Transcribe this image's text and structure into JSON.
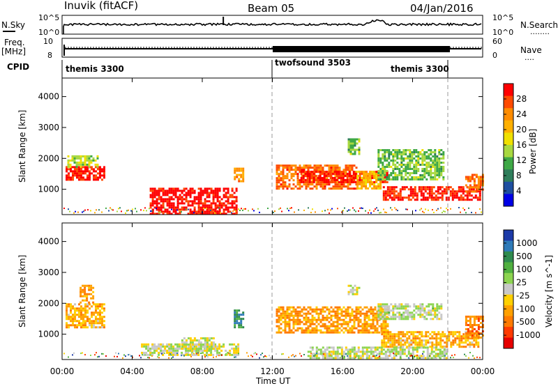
{
  "header": {
    "station": "Inuvik (fitACF)",
    "beam": "Beam 05",
    "date": "04/Jan/2016"
  },
  "nsky_panel": {
    "left_label": "N.Sky",
    "left_tick_top": "10^5",
    "left_tick_bottom": "10^0",
    "right_tick_top": "10^5",
    "right_tick_bottom": "10^0",
    "right_label": "N.Search",
    "right_label_marker": "........"
  },
  "freq_panel": {
    "left_label_line1": "Freq.",
    "left_label_line2": "[MHz]",
    "left_tick_top": "10",
    "left_tick_bottom": "8",
    "right_tick_top": "60",
    "right_tick_bottom": "0",
    "right_label": "Nave",
    "right_label_marker": "...."
  },
  "cpid": {
    "label": "CPID",
    "segments": [
      {
        "name": "themis 3300",
        "start_hour": 0,
        "end_hour": 12
      },
      {
        "name": "twofsound 3503",
        "start_hour": 12,
        "end_hour": 22
      },
      {
        "name": "themis 3300",
        "start_hour": 22,
        "end_hour": 24
      }
    ]
  },
  "power_panel": {
    "ylabel": "Slant Range [km]",
    "yticks": [
      "4000",
      "3000",
      "2000",
      "1000"
    ],
    "colorbar_label": "Power [dB]",
    "colorbar_ticks": [
      "28",
      "24",
      "20",
      "16",
      "12",
      "8",
      "4"
    ],
    "colorbar_colors": [
      "#ff0000",
      "#ff4a00",
      "#ff8c00",
      "#ffb000",
      "#f0e000",
      "#a8d840",
      "#3ea846",
      "#2e7d5a",
      "#1e4fa0",
      "#0000e6"
    ]
  },
  "velocity_panel": {
    "ylabel": "Slant Range [km]",
    "yticks": [
      "4000",
      "3000",
      "2000",
      "1000"
    ],
    "colorbar_label": "Velocity [m s^-1]",
    "colorbar_ticks": [
      "1000",
      "500",
      "100",
      "25",
      "-25",
      "-100",
      "-500",
      "-1000"
    ],
    "colorbar_colors": [
      "#1c3aa8",
      "#2e7ab8",
      "#2e8a4e",
      "#50b040",
      "#8cd450",
      "#c8c8c8",
      "#ffd000",
      "#ffa000",
      "#ff7a00",
      "#ff3a00",
      "#e60000"
    ]
  },
  "xaxis": {
    "label": "Time UT",
    "ticks": [
      "00:00",
      "04:00",
      "08:00",
      "12:00",
      "16:00",
      "20:00",
      "00:00"
    ]
  },
  "chart_data": [
    {
      "type": "heatmap",
      "title": "Power",
      "xlabel": "Time UT",
      "ylabel": "Slant Range [km]",
      "colorbar": "Power [dB]",
      "xlim_hours": [
        0,
        24
      ],
      "ylim_km": [
        180,
        4600
      ],
      "clim": [
        0,
        30
      ],
      "dashed_lines_hours": [
        12,
        22
      ],
      "regions": [
        {
          "t0": 0.2,
          "t1": 2.4,
          "r0": 1300,
          "r1": 1750,
          "value": 28
        },
        {
          "t0": 0.3,
          "t1": 2.0,
          "r0": 1750,
          "r1": 2100,
          "value": 14
        },
        {
          "t0": 5.0,
          "t1": 9.9,
          "r0": 200,
          "r1": 1050,
          "value": 29
        },
        {
          "t0": 9.8,
          "t1": 10.3,
          "r0": 1250,
          "r1": 1700,
          "value": 22
        },
        {
          "t0": 12.2,
          "t1": 16.8,
          "r0": 1050,
          "r1": 1800,
          "value": 24
        },
        {
          "t0": 13.6,
          "t1": 18.5,
          "r0": 1200,
          "r1": 1600,
          "value": 28
        },
        {
          "t0": 16.3,
          "t1": 16.9,
          "r0": 2150,
          "r1": 2650,
          "value": 12
        },
        {
          "t0": 16.8,
          "t1": 18.2,
          "r0": 1000,
          "r1": 1600,
          "value": 20
        },
        {
          "t0": 18.0,
          "t1": 21.8,
          "r0": 1300,
          "r1": 2300,
          "value": 12
        },
        {
          "t0": 18.3,
          "t1": 23.8,
          "r0": 650,
          "r1": 1100,
          "value": 28
        },
        {
          "t0": 23.0,
          "t1": 24.0,
          "r0": 900,
          "r1": 1500,
          "value": 24
        }
      ]
    },
    {
      "type": "heatmap",
      "title": "Velocity",
      "xlabel": "Time UT",
      "ylabel": "Slant Range [km]",
      "colorbar": "Velocity [m s^-1]",
      "xlim_hours": [
        0,
        24
      ],
      "ylim_km": [
        180,
        4600
      ],
      "clim": [
        -1000,
        1000
      ],
      "dashed_lines_hours": [
        12,
        22
      ],
      "regions": [
        {
          "t0": 0.2,
          "t1": 2.4,
          "r0": 1200,
          "r1": 2000,
          "value": -300
        },
        {
          "t0": 1.0,
          "t1": 1.8,
          "r0": 2000,
          "r1": 2600,
          "value": -400
        },
        {
          "t0": 4.5,
          "t1": 10.0,
          "r0": 300,
          "r1": 700,
          "value": 0
        },
        {
          "t0": 6.8,
          "t1": 8.6,
          "r0": 500,
          "r1": 900,
          "value": 10
        },
        {
          "t0": 9.8,
          "t1": 10.3,
          "r0": 1250,
          "r1": 1800,
          "value": 600
        },
        {
          "t0": 12.2,
          "t1": 18.6,
          "r0": 1050,
          "r1": 1900,
          "value": -400
        },
        {
          "t0": 16.3,
          "t1": 16.9,
          "r0": 2300,
          "r1": 2600,
          "value": 10
        },
        {
          "t0": 18.0,
          "t1": 21.6,
          "r0": 1500,
          "r1": 2000,
          "value": 60
        },
        {
          "t0": 18.2,
          "t1": 23.8,
          "r0": 600,
          "r1": 1100,
          "value": -300
        },
        {
          "t0": 14.0,
          "t1": 22.0,
          "r0": 250,
          "r1": 600,
          "value": 50
        },
        {
          "t0": 23.0,
          "t1": 24.0,
          "r0": 900,
          "r1": 1600,
          "value": -500
        }
      ]
    }
  ]
}
